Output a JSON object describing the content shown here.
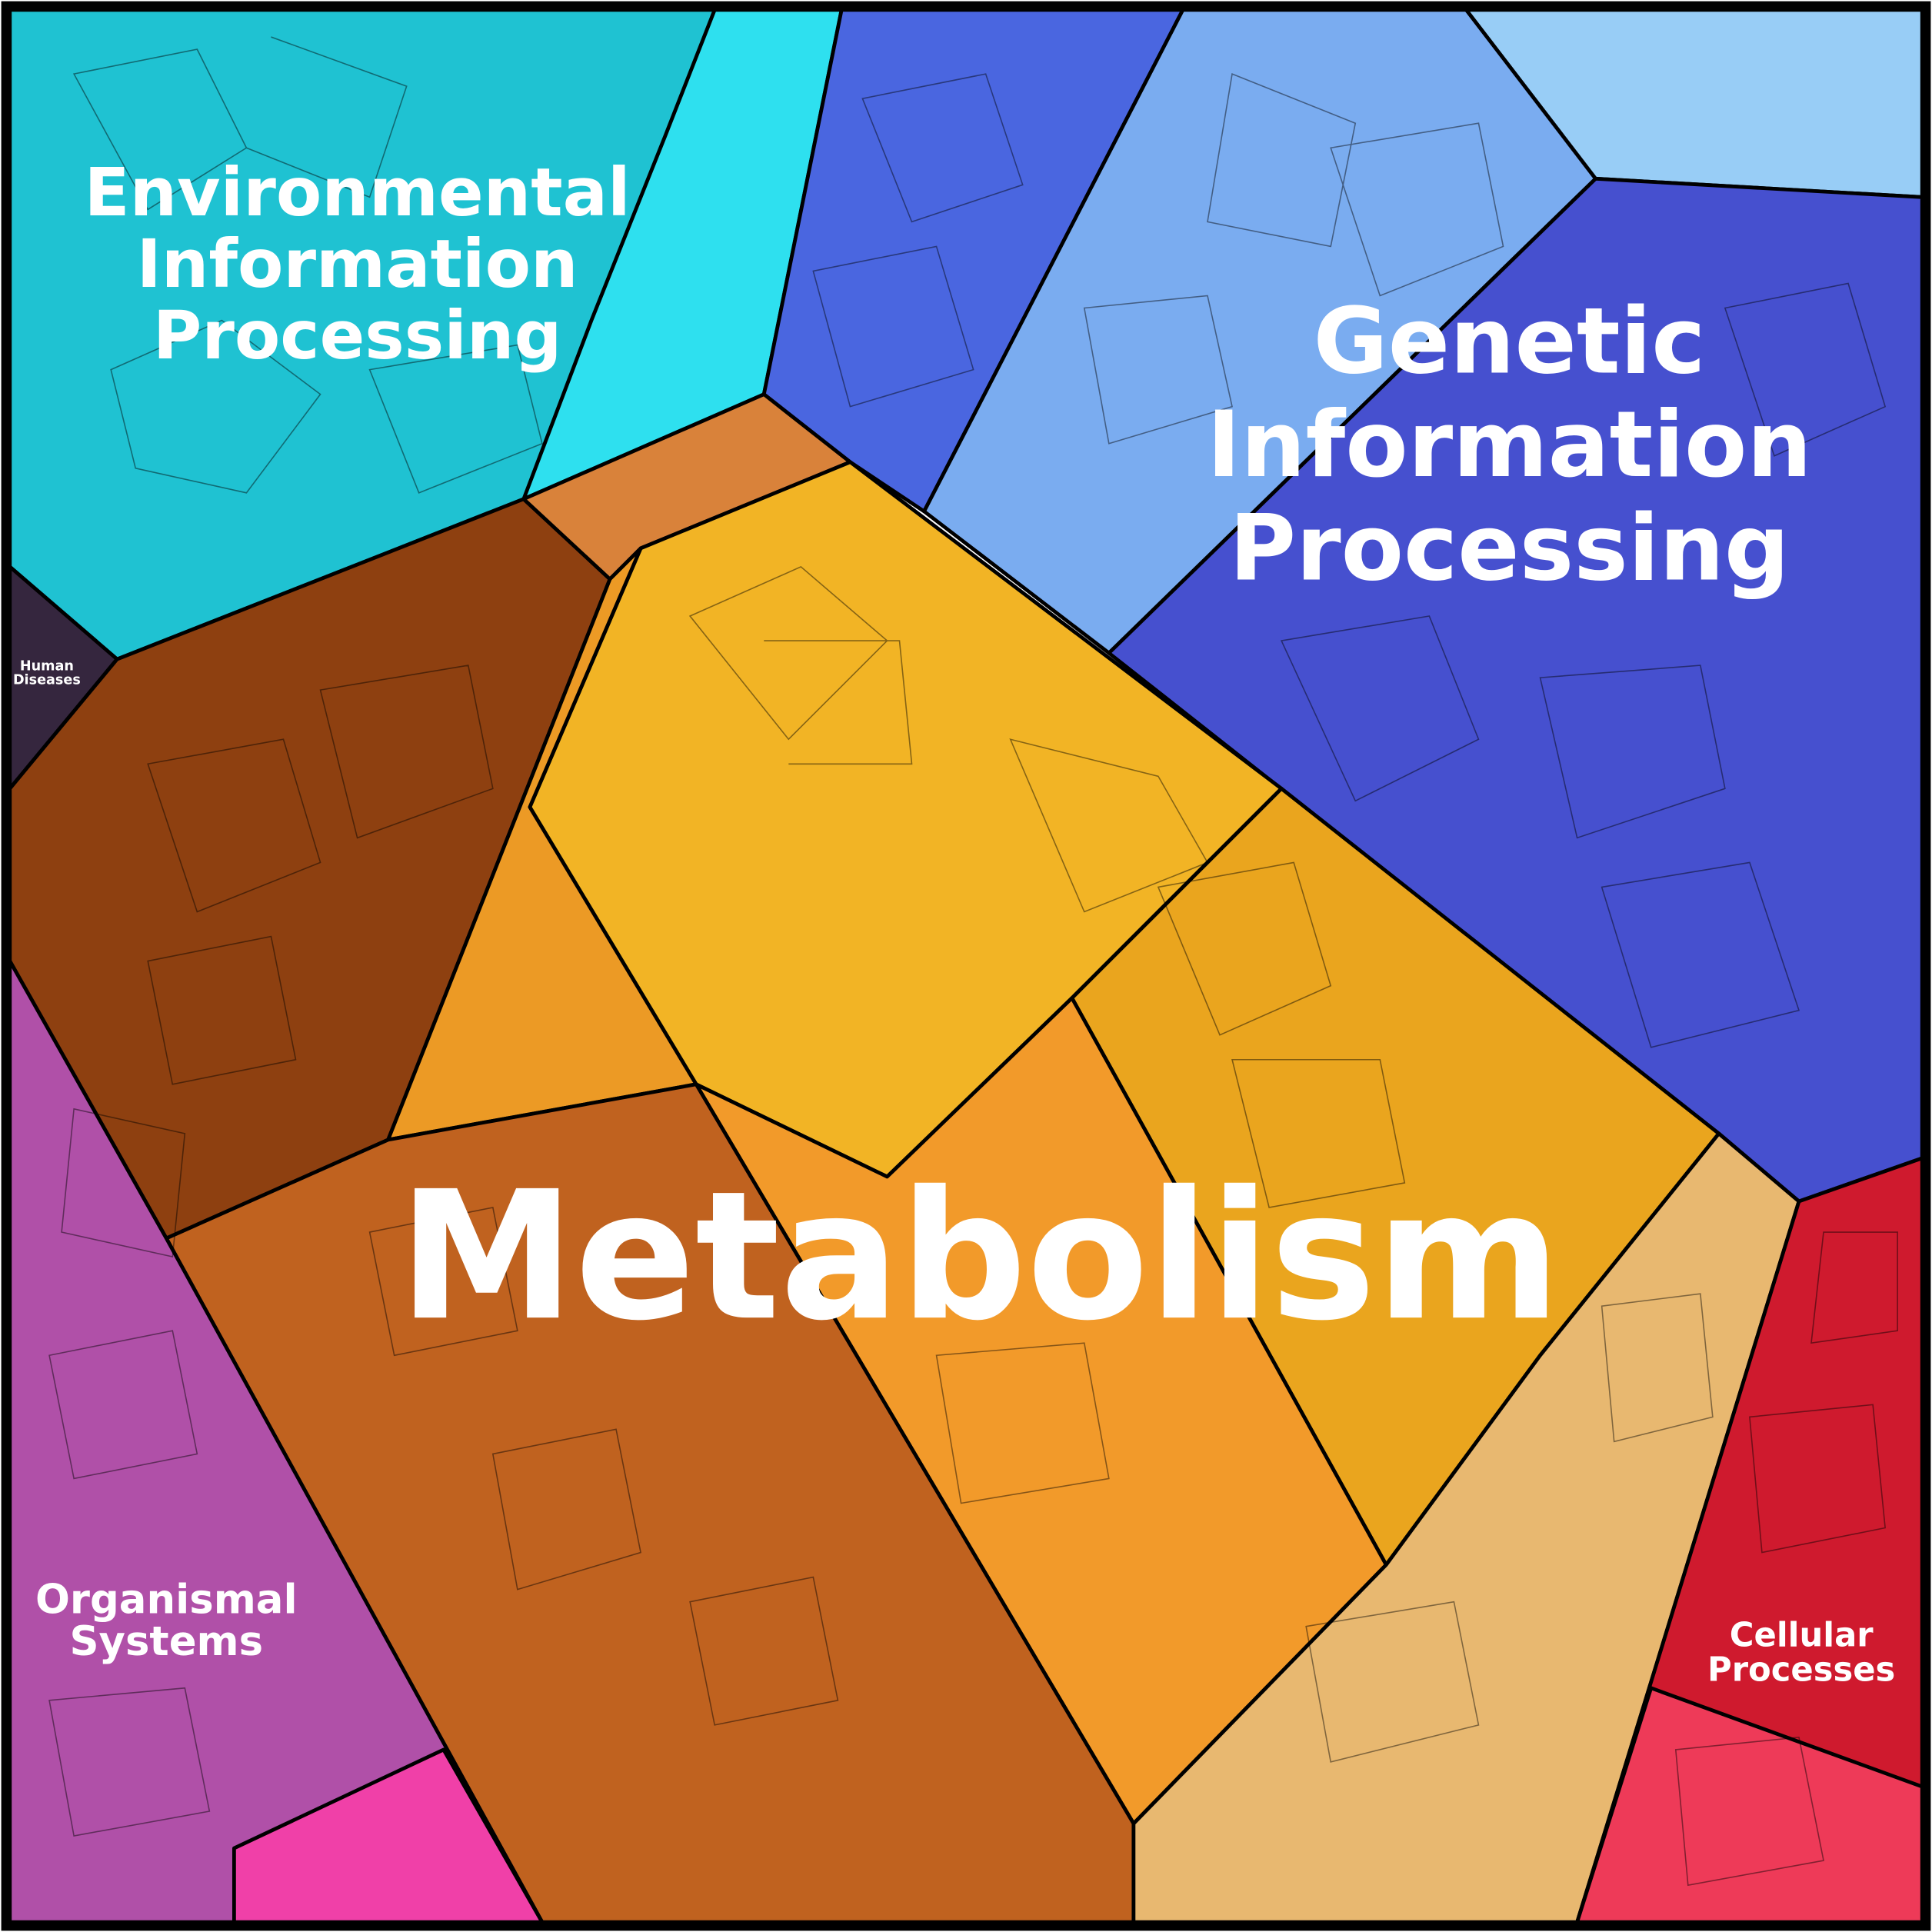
{
  "regions": [
    {
      "lines": [
        "Environmental",
        "Information",
        "Processing"
      ]
    },
    {
      "lines": [
        "Genetic",
        "Information",
        "Processing"
      ]
    },
    {
      "lines": [
        "Metabolism"
      ]
    },
    {
      "lines": [
        "Organismal",
        "Systems"
      ]
    },
    {
      "lines": [
        "Cellular",
        "Processes"
      ]
    },
    {
      "lines": [
        "Human",
        "Diseases"
      ]
    }
  ]
}
